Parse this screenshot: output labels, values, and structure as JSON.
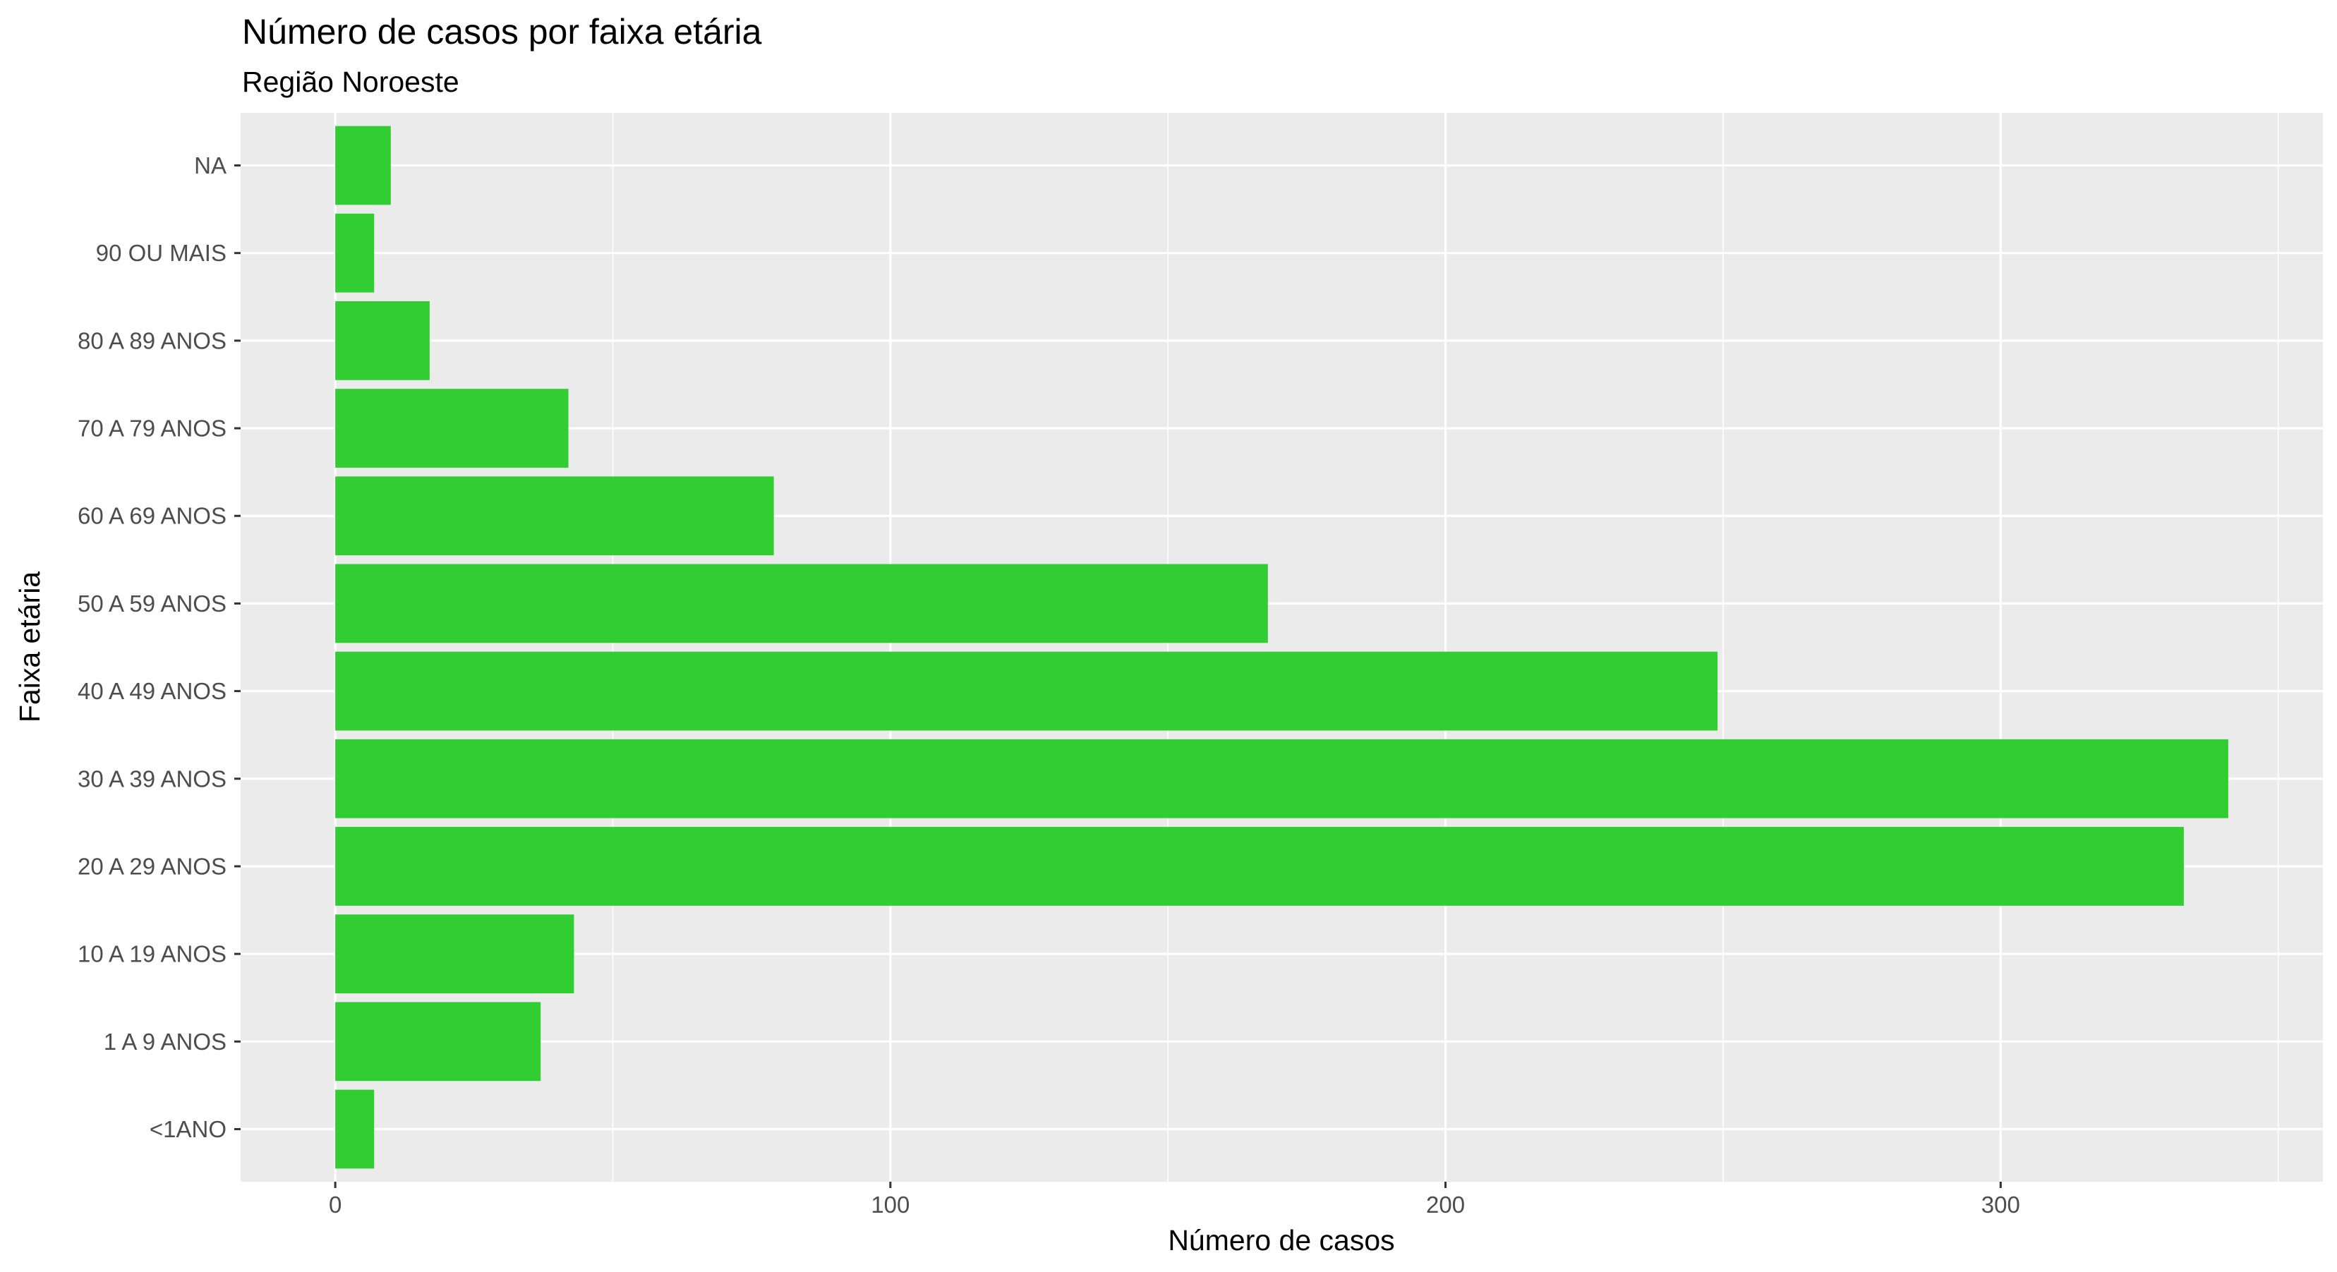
{
  "chart_data": {
    "type": "bar",
    "orientation": "horizontal",
    "title": "Número de casos por faixa etária",
    "subtitle": "Região Noroeste",
    "xlabel": "Número de casos",
    "ylabel": "Faixa etária",
    "categories": [
      "<1ANO",
      "1 A 9 ANOS",
      "10 A 19 ANOS",
      "20 A 29 ANOS",
      "30 A 39 ANOS",
      "40 A 49 ANOS",
      "50 A 59 ANOS",
      "60 A 69 ANOS",
      "70 A 79 ANOS",
      "80 A 89 ANOS",
      "90 OU MAIS",
      "NA"
    ],
    "values": [
      7,
      37,
      43,
      333,
      341,
      249,
      168,
      79,
      42,
      17,
      7,
      10
    ],
    "xlim": [
      -17.05,
      358.05
    ],
    "xticks": [
      0,
      100,
      200,
      300
    ],
    "xtick_labels": [
      "0",
      "100",
      "200",
      "300"
    ],
    "grid": true,
    "bar_color": "#32CD32",
    "panel_background": "#EBEBEB",
    "grid_color": "#FFFFFF"
  }
}
